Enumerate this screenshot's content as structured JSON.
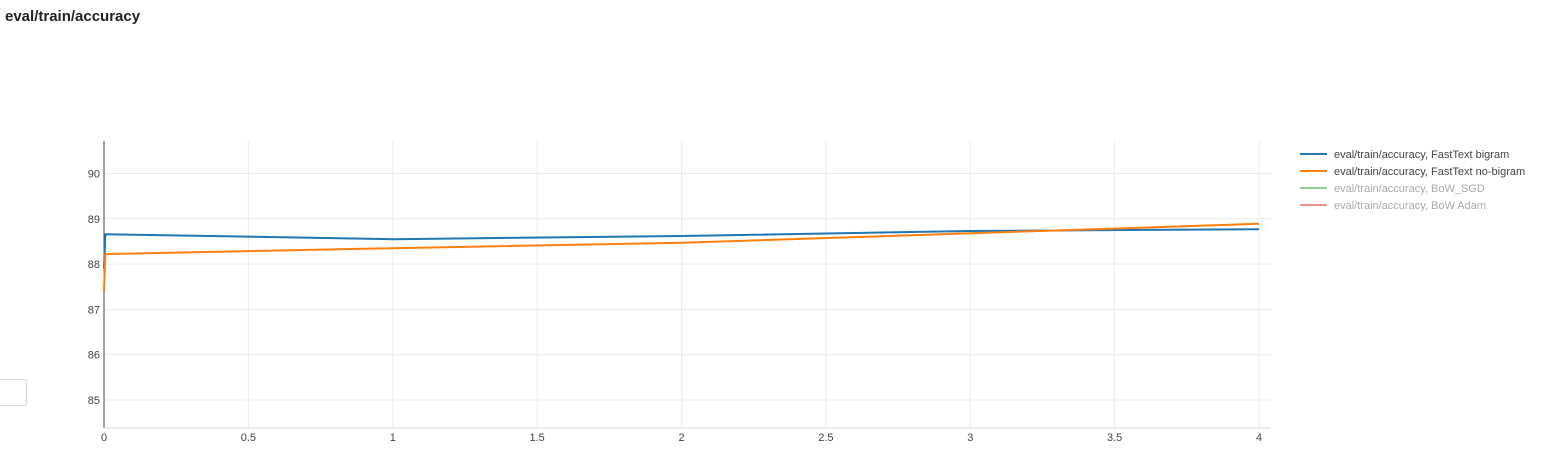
{
  "page": {
    "title": "eval/train/accuracy"
  },
  "chart_data": {
    "type": "line",
    "title": "eval/train/accuracy",
    "xlabel": "",
    "ylabel": "",
    "xlim": [
      0,
      4
    ],
    "ylim": [
      84.4,
      90.7
    ],
    "x_ticks": [
      0,
      0.5,
      1,
      1.5,
      2,
      2.5,
      3,
      3.5,
      4
    ],
    "x_tick_labels": [
      "0",
      "0.5",
      "1",
      "1.5",
      "2",
      "2.5",
      "3",
      "3.5",
      "4"
    ],
    "y_ticks": [
      85,
      86,
      87,
      88,
      89,
      90
    ],
    "y_tick_labels": [
      "85",
      "86",
      "87",
      "88",
      "89",
      "90"
    ],
    "grid": true,
    "legend_position": "top-right",
    "series": [
      {
        "name": "eval/train/accuracy, FastText bigram",
        "color": "#1f77b4",
        "visible": true,
        "x": [
          0,
          0.005,
          1,
          2,
          3,
          4
        ],
        "y": [
          87.9,
          88.66,
          88.55,
          88.62,
          88.73,
          88.77
        ]
      },
      {
        "name": "eval/train/accuracy, FastText no-bigram",
        "color": "#ff7f0e",
        "visible": true,
        "x": [
          0,
          0.005,
          1,
          2,
          3,
          4
        ],
        "y": [
          87.4,
          88.22,
          88.35,
          88.47,
          88.68,
          88.89
        ]
      },
      {
        "name": "eval/train/accuracy, BoW_SGD",
        "color": "#2ca02c",
        "visible": false,
        "x": [],
        "y": []
      },
      {
        "name": "eval/train/accuracy, BoW Adam",
        "color": "#d62728",
        "visible": false,
        "x": [],
        "y": []
      }
    ]
  }
}
